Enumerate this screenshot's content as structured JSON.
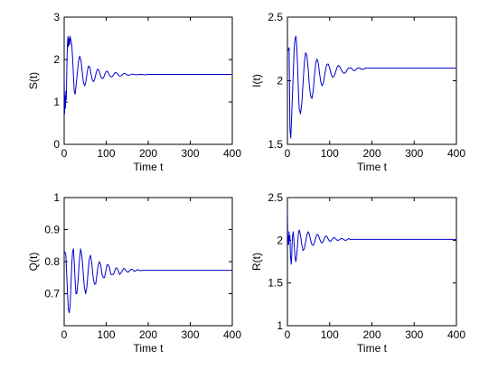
{
  "chart_data": [
    {
      "type": "line",
      "xlabel": "Time t",
      "ylabel": "S(t)",
      "xlim": [
        0,
        400
      ],
      "ylim": [
        0,
        3
      ],
      "xticks": [
        0,
        100,
        200,
        300,
        400
      ],
      "yticks": [
        0,
        1,
        2,
        3
      ],
      "grid": false,
      "series": [
        {
          "color": "#0000cc",
          "x": [
            0,
            1,
            2,
            3,
            4,
            5,
            6,
            7,
            8,
            9,
            10,
            11,
            12,
            13,
            14,
            15,
            16,
            18,
            20,
            22,
            24,
            26,
            28,
            31,
            34,
            37,
            40,
            43,
            46,
            49,
            52,
            55,
            58,
            61,
            64,
            67,
            70,
            73,
            76,
            79,
            82,
            85,
            88,
            91,
            94,
            97,
            100,
            103,
            106,
            109,
            112,
            115,
            118,
            121,
            124,
            127,
            130,
            133,
            136,
            139,
            142,
            145,
            148,
            151,
            154,
            157,
            160,
            163,
            166,
            169,
            172,
            175,
            178,
            181,
            184,
            187,
            190,
            193,
            196,
            200,
            250,
            300,
            350,
            400
          ],
          "y": [
            1.65,
            0.72,
            1.15,
            0.85,
            1.25,
            1.05,
            1.6,
            2.1,
            2.4,
            2.55,
            2.3,
            2.45,
            2.5,
            2.35,
            2.55,
            2.5,
            2.45,
            2.35,
            2.05,
            1.65,
            1.25,
            1.18,
            1.35,
            1.65,
            1.95,
            2.08,
            1.98,
            1.7,
            1.45,
            1.38,
            1.5,
            1.72,
            1.85,
            1.82,
            1.66,
            1.52,
            1.48,
            1.55,
            1.68,
            1.77,
            1.76,
            1.67,
            1.58,
            1.55,
            1.58,
            1.66,
            1.72,
            1.72,
            1.67,
            1.61,
            1.59,
            1.6,
            1.65,
            1.69,
            1.69,
            1.66,
            1.62,
            1.61,
            1.62,
            1.65,
            1.67,
            1.67,
            1.65,
            1.63,
            1.63,
            1.64,
            1.65,
            1.66,
            1.65,
            1.64,
            1.64,
            1.64,
            1.65,
            1.65,
            1.65,
            1.65,
            1.64,
            1.64,
            1.65,
            1.65,
            1.65,
            1.65,
            1.65,
            1.65
          ]
        }
      ]
    },
    {
      "type": "line",
      "xlabel": "Time t",
      "ylabel": "I(t)",
      "xlim": [
        0,
        400
      ],
      "ylim": [
        1.5,
        2.5
      ],
      "xticks": [
        0,
        100,
        200,
        300,
        400
      ],
      "yticks": [
        1.5,
        2,
        2.5
      ],
      "grid": false,
      "series": [
        {
          "color": "#0000cc",
          "x": [
            0,
            2,
            4,
            6,
            8,
            10,
            12,
            14,
            16,
            18,
            20,
            22,
            24,
            26,
            28,
            31,
            34,
            37,
            40,
            43,
            46,
            49,
            52,
            55,
            58,
            61,
            64,
            67,
            70,
            73,
            76,
            79,
            82,
            85,
            88,
            91,
            94,
            97,
            100,
            103,
            106,
            109,
            112,
            115,
            118,
            121,
            124,
            127,
            130,
            133,
            136,
            139,
            142,
            145,
            148,
            151,
            154,
            157,
            160,
            163,
            166,
            169,
            172,
            175,
            178,
            181,
            184,
            187,
            190,
            200,
            250,
            300,
            350,
            400
          ],
          "y": [
            2.25,
            2.24,
            2.26,
            1.62,
            1.55,
            1.72,
            1.9,
            2.08,
            2.25,
            2.33,
            2.35,
            2.28,
            2.12,
            1.92,
            1.78,
            1.74,
            1.82,
            1.98,
            2.14,
            2.22,
            2.2,
            2.1,
            1.96,
            1.88,
            1.86,
            1.92,
            2.04,
            2.14,
            2.17,
            2.14,
            2.06,
            1.99,
            1.96,
            1.98,
            2.04,
            2.1,
            2.13,
            2.13,
            2.1,
            2.06,
            2.03,
            2.03,
            2.05,
            2.08,
            2.11,
            2.12,
            2.11,
            2.09,
            2.07,
            2.06,
            2.06,
            2.07,
            2.09,
            2.1,
            2.1,
            2.1,
            2.09,
            2.08,
            2.08,
            2.09,
            2.1,
            2.1,
            2.1,
            2.09,
            2.09,
            2.09,
            2.1,
            2.1,
            2.1,
            2.1,
            2.1,
            2.1,
            2.1,
            2.1
          ]
        }
      ]
    },
    {
      "type": "line",
      "xlabel": "Time t",
      "ylabel": "Q(t)",
      "xlim": [
        0,
        400
      ],
      "ylim": [
        0.6,
        1
      ],
      "xticks": [
        0,
        100,
        200,
        300,
        400
      ],
      "yticks": [
        0.7,
        0.8,
        0.9,
        1
      ],
      "grid": false,
      "series": [
        {
          "color": "#0000cc",
          "x": [
            0,
            2,
            4,
            6,
            8,
            10,
            12,
            14,
            16,
            18,
            20,
            22,
            24,
            26,
            28,
            30,
            33,
            36,
            39,
            42,
            45,
            48,
            51,
            54,
            57,
            60,
            63,
            66,
            69,
            72,
            75,
            78,
            81,
            84,
            87,
            90,
            93,
            96,
            99,
            102,
            105,
            108,
            111,
            114,
            117,
            120,
            123,
            126,
            129,
            132,
            135,
            138,
            141,
            144,
            147,
            150,
            153,
            156,
            159,
            162,
            165,
            168,
            171,
            174,
            177,
            180,
            190,
            200,
            250,
            300,
            350,
            400
          ],
          "y": [
            0.83,
            0.83,
            0.82,
            0.76,
            0.7,
            0.65,
            0.64,
            0.66,
            0.72,
            0.79,
            0.83,
            0.84,
            0.8,
            0.74,
            0.7,
            0.7,
            0.74,
            0.8,
            0.84,
            0.82,
            0.77,
            0.72,
            0.7,
            0.72,
            0.77,
            0.81,
            0.82,
            0.79,
            0.75,
            0.73,
            0.73,
            0.76,
            0.79,
            0.8,
            0.79,
            0.76,
            0.75,
            0.75,
            0.77,
            0.79,
            0.79,
            0.78,
            0.76,
            0.76,
            0.76,
            0.77,
            0.78,
            0.78,
            0.77,
            0.76,
            0.765,
            0.77,
            0.778,
            0.778,
            0.772,
            0.768,
            0.768,
            0.772,
            0.776,
            0.776,
            0.772,
            0.77,
            0.772,
            0.775,
            0.774,
            0.772,
            0.773,
            0.773,
            0.773,
            0.773,
            0.773,
            0.773
          ]
        }
      ]
    },
    {
      "type": "line",
      "xlabel": "Time t",
      "ylabel": "R(t)",
      "xlim": [
        0,
        400
      ],
      "ylim": [
        1,
        2.5
      ],
      "xticks": [
        0,
        100,
        200,
        300,
        400
      ],
      "yticks": [
        1,
        1.5,
        2,
        2.5
      ],
      "grid": false,
      "series": [
        {
          "color": "#0000cc",
          "x": [
            0,
            1,
            2,
            3,
            4,
            5,
            6,
            7,
            8,
            9,
            10,
            11,
            12,
            14,
            16,
            18,
            20,
            22,
            24,
            26,
            28,
            31,
            34,
            37,
            40,
            43,
            46,
            49,
            52,
            55,
            58,
            61,
            64,
            67,
            70,
            73,
            76,
            79,
            82,
            85,
            88,
            91,
            94,
            97,
            100,
            103,
            106,
            109,
            112,
            115,
            118,
            121,
            124,
            127,
            130,
            133,
            136,
            139,
            142,
            145,
            148,
            151,
            154,
            157,
            160,
            170,
            180,
            200,
            250,
            300,
            350,
            400
          ],
          "y": [
            2.35,
            1.95,
            2.05,
            1.95,
            2.1,
            2.0,
            2.05,
            1.85,
            1.78,
            1.72,
            1.8,
            1.95,
            2.05,
            2.1,
            1.95,
            1.8,
            1.75,
            1.82,
            1.95,
            2.08,
            2.12,
            2.06,
            1.95,
            1.88,
            1.9,
            1.98,
            2.06,
            2.1,
            2.07,
            2.0,
            1.95,
            1.94,
            1.97,
            2.03,
            2.07,
            2.06,
            2.02,
            1.98,
            1.97,
            1.99,
            2.03,
            2.05,
            2.04,
            2.01,
            1.99,
            1.99,
            2.01,
            2.03,
            2.03,
            2.01,
            2.0,
            2.0,
            2.01,
            2.02,
            2.02,
            2.01,
            2.0,
            2.0,
            2.01,
            2.02,
            2.01,
            2.01,
            2.01,
            2.01,
            2.01,
            2.01,
            2.01,
            2.01,
            2.01,
            2.01,
            2.01,
            2.01
          ]
        }
      ]
    }
  ]
}
